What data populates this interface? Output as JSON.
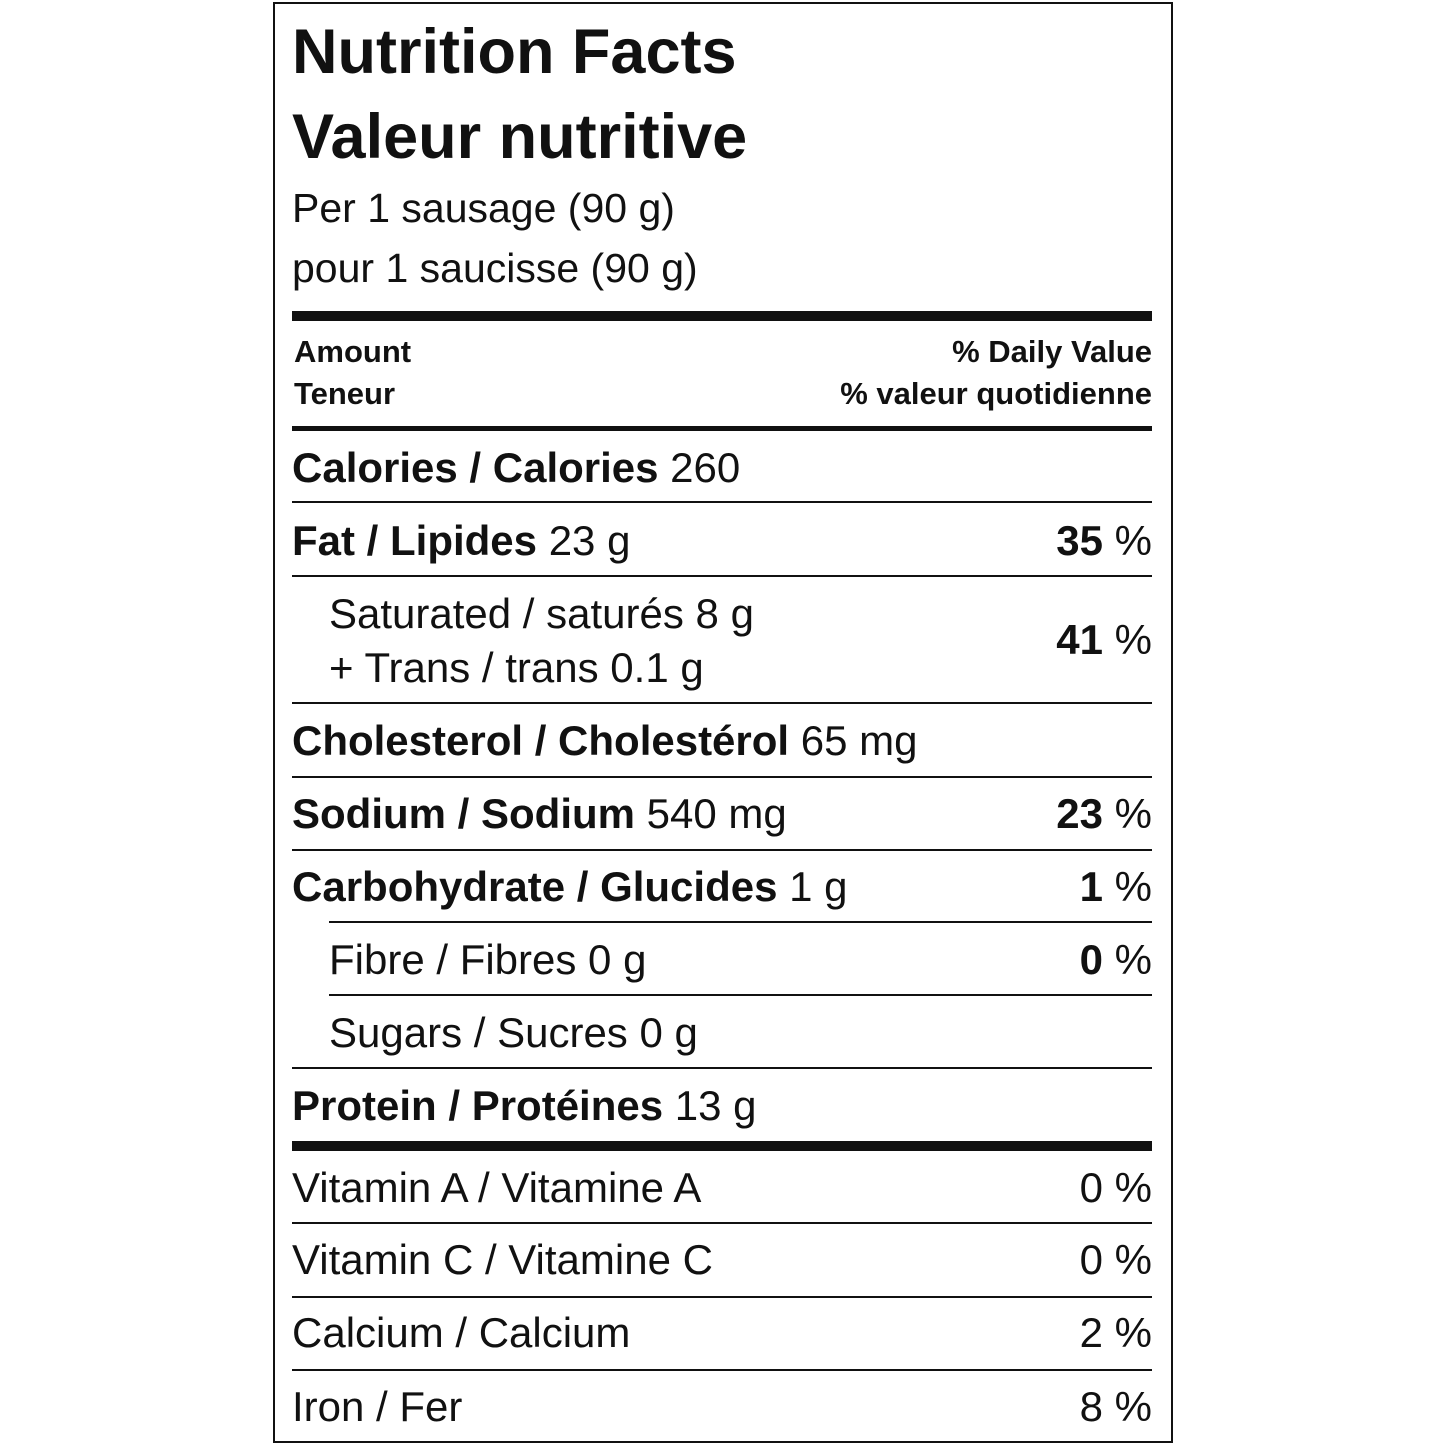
{
  "header": {
    "title": "Nutrition Facts",
    "title_fr": "Valeur nutritive",
    "serving": "Per 1 sausage (90 g)",
    "serving_fr": "pour 1 saucisse (90 g)"
  },
  "columns": {
    "amount": "Amount",
    "amount_fr": "Teneur",
    "dv": "% Daily Value",
    "dv_fr": "% valeur quotidienne"
  },
  "nutrients": [
    {
      "label": "Calories / Calories",
      "amount": "260"
    },
    {
      "label": "Fat / Lipides",
      "amount": "23 g",
      "dv": "35",
      "unit": "%"
    },
    {
      "label": "Saturated / saturés 8 g",
      "label_2": "+ Trans / trans 0.1 g",
      "dv": "41",
      "unit": "%"
    },
    {
      "label": "Cholesterol / Cholestérol",
      "amount": "65 mg"
    },
    {
      "label": "Sodium / Sodium",
      "amount": "540 mg",
      "dv": "23",
      "unit": "%"
    },
    {
      "label": "Carbohydrate / Glucides",
      "amount": "1 g",
      "dv": "1",
      "unit": "%"
    },
    {
      "label": "Fibre / Fibres 0 g",
      "dv": "0",
      "unit": "%"
    },
    {
      "label": "Sugars / Sucres 0 g"
    },
    {
      "label": "Protein / Protéines",
      "amount": "13 g"
    }
  ],
  "vitamins": [
    {
      "label": "Vitamin A / Vitamine A",
      "dv": "0 %"
    },
    {
      "label": "Vitamin C / Vitamine C",
      "dv": "0 %"
    },
    {
      "label": "Calcium / Calcium",
      "dv": "2 %"
    },
    {
      "label": "Iron / Fer",
      "dv": "8 %"
    }
  ]
}
